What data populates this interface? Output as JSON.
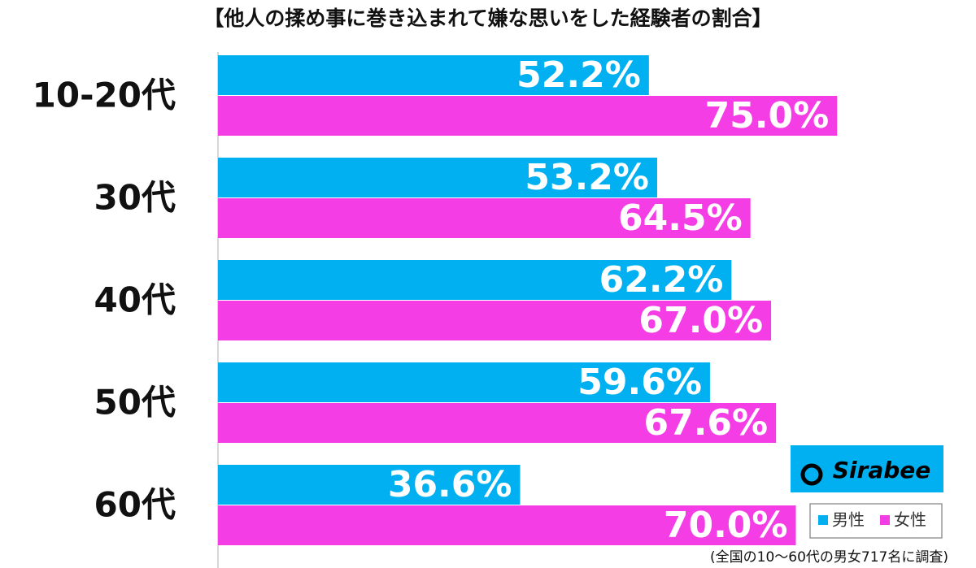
{
  "chart_data": {
    "type": "bar",
    "orientation": "horizontal",
    "title": "【他人の揉め事に巻き込まれて嫌な思いをした経験者の割合】",
    "categories": [
      "10-20代",
      "30代",
      "40代",
      "50代",
      "60代"
    ],
    "series": [
      {
        "name": "男性",
        "color": "#00b0f0",
        "values": [
          52.2,
          53.2,
          62.2,
          59.6,
          36.6
        ],
        "value_labels": [
          "52.2%",
          "53.2%",
          "62.2%",
          "59.6%",
          "36.6%"
        ]
      },
      {
        "name": "女性",
        "color": "#f53de6",
        "values": [
          75.0,
          64.5,
          67.0,
          67.6,
          70.0
        ],
        "value_labels": [
          "75.0%",
          "64.5%",
          "67.0%",
          "67.6%",
          "70.0%"
        ]
      }
    ],
    "xlim": [
      0,
      100
    ],
    "logo": "Sirabee",
    "note": "(全国の10〜60代の男女717名に調査)"
  }
}
